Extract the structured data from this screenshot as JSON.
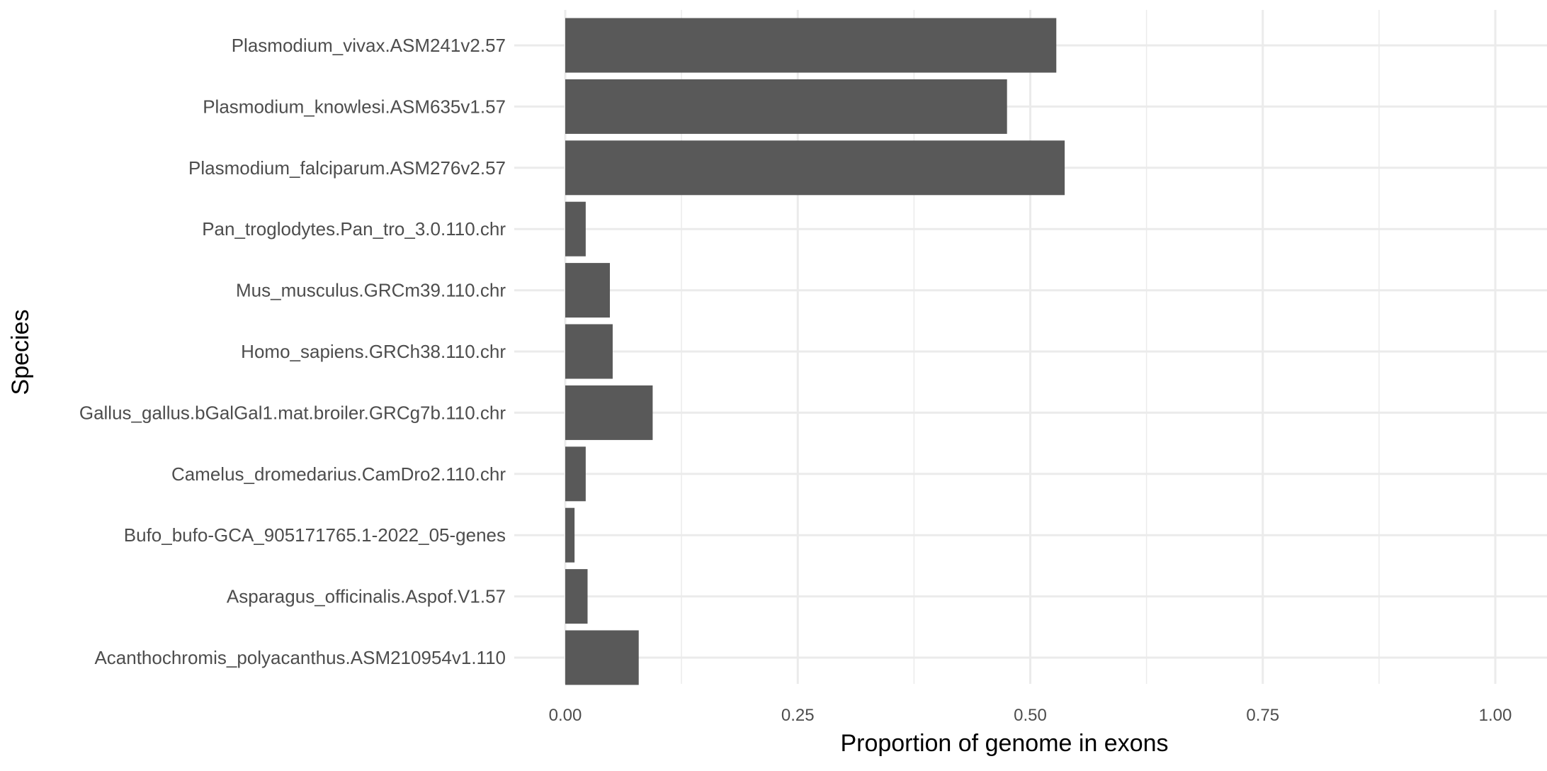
{
  "chart_data": {
    "type": "bar",
    "orientation": "horizontal",
    "categories": [
      "Plasmodium_vivax.ASM241v2.57",
      "Plasmodium_knowlesi.ASM635v1.57",
      "Plasmodium_falciparum.ASM276v2.57",
      "Pan_troglodytes.Pan_tro_3.0.110.chr",
      "Mus_musculus.GRCm39.110.chr",
      "Homo_sapiens.GRCh38.110.chr",
      "Gallus_gallus.bGalGal1.mat.broiler.GRCg7b.110.chr",
      "Camelus_dromedarius.CamDro2.110.chr",
      "Bufo_bufo-GCA_905171765.1-2022_05-genes",
      "Asparagus_officinalis.Aspof.V1.57",
      "Acanthochromis_polyacanthus.ASM210954v1.110"
    ],
    "values": [
      0.528,
      0.475,
      0.537,
      0.022,
      0.048,
      0.051,
      0.094,
      0.022,
      0.01,
      0.024,
      0.079
    ],
    "xlim": [
      0,
      1.0
    ],
    "xticks": [
      0.0,
      0.25,
      0.5,
      0.75,
      1.0
    ],
    "xtick_labels": [
      "0.00",
      "0.25",
      "0.50",
      "0.75",
      "1.00"
    ],
    "xlabel": "Proportion of genome in exons",
    "ylabel": "Species",
    "title": "",
    "grid": true,
    "legend": "none",
    "bar_color": "#595959",
    "grid_color": "#ebebeb"
  }
}
